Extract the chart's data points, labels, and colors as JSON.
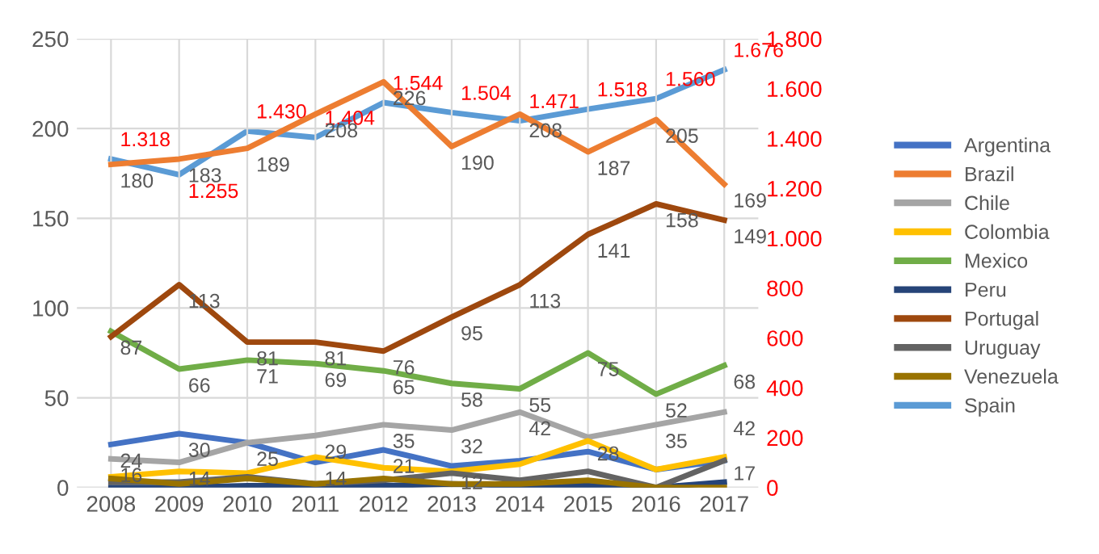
{
  "chart_data": {
    "type": "line",
    "x": [
      2008,
      2009,
      2010,
      2011,
      2012,
      2013,
      2014,
      2015,
      2016,
      2017
    ],
    "xlim": [
      2007.5,
      2017.5
    ],
    "xticks": [
      2008,
      2009,
      2010,
      2011,
      2012,
      2013,
      2014,
      2015,
      2016,
      2017
    ],
    "ylim": [
      0,
      250
    ],
    "yticks": [
      0,
      50,
      100,
      150,
      200,
      250
    ],
    "y2lim": [
      0,
      1800
    ],
    "y2ticks": [
      {
        "value": 0,
        "label": "0"
      },
      {
        "value": 200,
        "label": "200"
      },
      {
        "value": 400,
        "label": "400"
      },
      {
        "value": 600,
        "label": "600"
      },
      {
        "value": 800,
        "label": "800"
      },
      {
        "value": 1000,
        "label": "1.000"
      },
      {
        "value": 1200,
        "label": "1.200"
      },
      {
        "value": 1400,
        "label": "1.400"
      },
      {
        "value": 1600,
        "label": "1.600"
      },
      {
        "value": 1800,
        "label": "1.800"
      }
    ],
    "grid": true,
    "legend": "right",
    "marker": "none",
    "line_style": "solid",
    "series": [
      {
        "name": "Argentina",
        "color": "#4472c4",
        "values": [
          24,
          30,
          25,
          14,
          21,
          12,
          15,
          20,
          10,
          15
        ],
        "value_labels": [
          "24",
          "30",
          null,
          "14",
          "21",
          "12",
          null,
          null,
          null,
          null
        ]
      },
      {
        "name": "Brazil",
        "color": "#ed7d31",
        "values": [
          180,
          183,
          189,
          208,
          226,
          190,
          208,
          187,
          205,
          169
        ],
        "value_labels": [
          "180",
          "183",
          "189",
          "208",
          "226",
          "190",
          "208",
          "187",
          "205",
          "169"
        ]
      },
      {
        "name": "Chile",
        "color": "#a5a5a5",
        "values": [
          16,
          14,
          25,
          29,
          35,
          32,
          42,
          28,
          35,
          42
        ],
        "value_labels": [
          "16",
          "14",
          "25",
          "29",
          "35",
          "32",
          "42",
          "28",
          "35",
          "42"
        ]
      },
      {
        "name": "Colombia",
        "color": "#ffc000",
        "values": [
          6,
          9,
          8,
          17,
          11,
          9,
          13,
          26,
          10,
          17
        ],
        "value_labels": [
          null,
          null,
          null,
          null,
          null,
          null,
          null,
          null,
          null,
          "17"
        ]
      },
      {
        "name": "Mexico",
        "color": "#70ad47",
        "values": [
          87,
          66,
          71,
          69,
          65,
          58,
          55,
          75,
          52,
          68
        ],
        "value_labels": [
          "87",
          "66",
          "71",
          "69",
          "65",
          "58",
          "55",
          "75",
          "52",
          "68"
        ]
      },
      {
        "name": "Peru",
        "color": "#264478",
        "values": [
          0,
          0,
          1,
          1,
          1,
          2,
          1,
          1,
          0,
          3
        ]
      },
      {
        "name": "Portugal",
        "color": "#9e480e",
        "values": [
          84,
          113,
          81,
          81,
          76,
          95,
          113,
          141,
          158,
          149
        ],
        "value_labels": [
          null,
          "113",
          "81",
          "81",
          "76",
          "95",
          "113",
          "141",
          "158",
          "149"
        ]
      },
      {
        "name": "Uruguay",
        "color": "#636363",
        "values": [
          3,
          3,
          6,
          2,
          4,
          8,
          4,
          9,
          0,
          15
        ]
      },
      {
        "name": "Venezuela",
        "color": "#997300",
        "values": [
          5,
          2,
          5,
          2,
          5,
          2,
          2,
          4,
          0,
          0
        ]
      },
      {
        "name": "Spain",
        "color": "#5b9bd5",
        "axis": "y2",
        "values": [
          1318,
          1255,
          1430,
          1404,
          1544,
          1504,
          1471,
          1518,
          1560,
          1676
        ],
        "value_labels": [
          "1.318",
          "1.255",
          "1.430",
          "1.404",
          "1.544",
          "1.504",
          "1.471",
          "1.518",
          "1.560",
          "1.676"
        ]
      }
    ]
  }
}
